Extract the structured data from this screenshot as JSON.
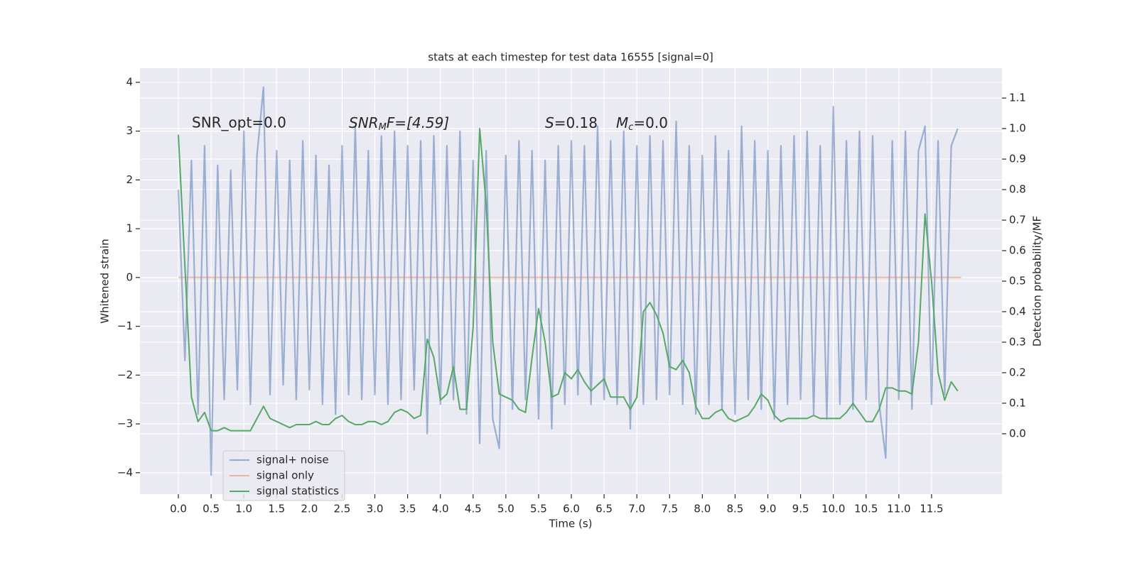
{
  "chart_data": {
    "type": "line",
    "title": "stats at each timestep for test data 16555 [signal=0]",
    "xlabel": "Time (s)",
    "ylabel": "Whitened strain",
    "y2label": "Detection probability/MF",
    "xlim": [
      -0.586,
      12.575
    ],
    "ylim": [
      -4.44,
      4.29
    ],
    "y2lim": [
      -0.198,
      1.198
    ],
    "grid": true,
    "legend": "lower left",
    "xticks": [
      {
        "value": 0,
        "label": "0.0"
      },
      0.5,
      {
        "value": 1,
        "label": "1.0"
      },
      1.5,
      {
        "value": 2,
        "label": "2.0"
      },
      2.5,
      {
        "value": 3,
        "label": "3.0"
      },
      3.5,
      {
        "value": 4,
        "label": "4.0"
      },
      4.5,
      {
        "value": 5,
        "label": "5.0"
      },
      5.5,
      {
        "value": 6,
        "label": "6.0"
      },
      6.5,
      {
        "value": 7,
        "label": "7.0"
      },
      7.5,
      {
        "value": 8,
        "label": "8.0"
      },
      8.5,
      {
        "value": 9,
        "label": "9.0"
      },
      9.5,
      {
        "value": 10,
        "label": "10.0"
      },
      10.5,
      {
        "value": 11,
        "label": "11.0"
      },
      11.5
    ],
    "yticks": [
      {
        "value": -4,
        "label": "−4"
      },
      {
        "value": -3,
        "label": "−3"
      },
      {
        "value": -2,
        "label": "−2"
      },
      {
        "value": -1,
        "label": "−1"
      },
      0,
      1,
      2,
      3,
      4
    ],
    "y2ticks": [
      {
        "value": 0,
        "label": "0.0"
      },
      0.1,
      0.2,
      0.3,
      0.4,
      0.5,
      0.6,
      0.7,
      0.8,
      0.9,
      {
        "value": 1,
        "label": "1.0"
      },
      1.1
    ],
    "annotations": [
      [
        "SNR_opt=0.0"
      ],
      [
        "SNR",
        "M",
        "F=[4.59]"
      ],
      [
        "S",
        "=0.18",
        "M",
        "c",
        "=0.0"
      ]
    ],
    "x": [
      0,
      0.1,
      0.2,
      0.3,
      0.4,
      0.5,
      0.6,
      0.7,
      0.8,
      0.9,
      1,
      1.1,
      1.2,
      1.3,
      1.4,
      1.5,
      1.6,
      1.7,
      1.8,
      1.9,
      2,
      2.1,
      2.2,
      2.3,
      2.4,
      2.5,
      2.6,
      2.7,
      2.8,
      2.9,
      3,
      3.1,
      3.2,
      3.3,
      3.4,
      3.5,
      3.6,
      3.7,
      3.8,
      3.9,
      4,
      4.1,
      4.2,
      4.3,
      4.4,
      4.5,
      4.6,
      4.7,
      4.8,
      4.9,
      5,
      5.1,
      5.2,
      5.3,
      5.4,
      5.5,
      5.6,
      5.7,
      5.8,
      5.9,
      6,
      6.1,
      6.2,
      6.3,
      6.4,
      6.5,
      6.6,
      6.7,
      6.8,
      6.9,
      7,
      7.1,
      7.2,
      7.3,
      7.4,
      7.5,
      7.6,
      7.7,
      7.8,
      7.9,
      8,
      8.1,
      8.2,
      8.3,
      8.4,
      8.5,
      8.6,
      8.7,
      8.8,
      8.9,
      9,
      9.1,
      9.2,
      9.3,
      9.4,
      9.5,
      9.6,
      9.7,
      9.8,
      9.9,
      10,
      10.1,
      10.2,
      10.3,
      10.4,
      10.5,
      10.6,
      10.7,
      10.8,
      10.9,
      11,
      11.1,
      11.2,
      11.3,
      11.4,
      11.5,
      11.6,
      11.7,
      11.8,
      11.9
    ],
    "series": [
      {
        "name": "signal+ noise",
        "color": "#4c72b0",
        "axis": "y",
        "values": [
          1.8,
          -1.7,
          2.4,
          -2.8,
          2.7,
          -4.05,
          2.3,
          -2.5,
          2.2,
          -2.3,
          3.0,
          -2.6,
          2.5,
          3.9,
          -2.4,
          2.6,
          -2.2,
          2.4,
          -2.5,
          2.8,
          -2.3,
          2.5,
          -2.6,
          2.3,
          -2.8,
          2.7,
          -2.4,
          3.1,
          -2.5,
          2.6,
          -2.4,
          2.9,
          -2.6,
          3.0,
          -2.5,
          2.7,
          -2.3,
          2.8,
          -3.2,
          2.9,
          -2.6,
          2.7,
          -2.5,
          3.0,
          -2.8,
          2.4,
          -3.4,
          2.6,
          -2.9,
          -3.5,
          2.5,
          -2.7,
          2.8,
          -2.5,
          2.6,
          -2.9,
          2.4,
          -3.1,
          2.7,
          -2.6,
          2.8,
          -2.4,
          2.7,
          -2.6,
          3.1,
          -2.5,
          2.8,
          -2.6,
          3.0,
          -3.1,
          2.7,
          -2.6,
          2.9,
          -2.5,
          2.8,
          -2.4,
          3.2,
          -2.6,
          2.7,
          -2.8,
          2.5,
          -2.6,
          2.9,
          -2.7,
          2.6,
          -2.8,
          3.1,
          -2.5,
          2.8,
          -2.7,
          2.6,
          -2.9,
          2.7,
          -2.6,
          2.9,
          -2.5,
          3.0,
          -2.8,
          2.7,
          -2.9,
          3.5,
          -2.6,
          2.8,
          -2.7,
          3.0,
          -2.5,
          2.9,
          -2.6,
          -3.7,
          2.8,
          -2.5,
          3.0,
          -2.7,
          2.6,
          3.1,
          -2.6,
          2.8,
          -2.4,
          2.7,
          3.05
        ]
      },
      {
        "name": "signal only",
        "color": "#dd8452",
        "axis": "y",
        "x": [
          0,
          11.95
        ],
        "values": [
          0,
          0
        ]
      },
      {
        "name": "signal statistics",
        "color": "#55a868",
        "axis": "y2",
        "values": [
          0.98,
          0.55,
          0.12,
          0.04,
          0.07,
          0.01,
          0.01,
          0.02,
          0.01,
          0.01,
          0.01,
          0.01,
          0.05,
          0.09,
          0.05,
          0.04,
          0.03,
          0.02,
          0.03,
          0.03,
          0.03,
          0.04,
          0.03,
          0.03,
          0.05,
          0.06,
          0.04,
          0.03,
          0.03,
          0.04,
          0.04,
          0.03,
          0.04,
          0.07,
          0.08,
          0.07,
          0.05,
          0.06,
          0.31,
          0.25,
          0.11,
          0.13,
          0.22,
          0.08,
          0.08,
          0.35,
          1.0,
          0.75,
          0.3,
          0.13,
          0.12,
          0.11,
          0.08,
          0.07,
          0.25,
          0.41,
          0.3,
          0.12,
          0.13,
          0.2,
          0.18,
          0.21,
          0.17,
          0.14,
          0.16,
          0.18,
          0.12,
          0.12,
          0.12,
          0.08,
          0.12,
          0.4,
          0.43,
          0.39,
          0.33,
          0.22,
          0.21,
          0.24,
          0.2,
          0.09,
          0.05,
          0.05,
          0.07,
          0.08,
          0.05,
          0.04,
          0.05,
          0.06,
          0.09,
          0.13,
          0.11,
          0.06,
          0.04,
          0.05,
          0.05,
          0.05,
          0.05,
          0.06,
          0.05,
          0.05,
          0.05,
          0.05,
          0.07,
          0.1,
          0.07,
          0.04,
          0.04,
          0.08,
          0.15,
          0.15,
          0.14,
          0.14,
          0.13,
          0.3,
          0.72,
          0.5,
          0.2,
          0.11,
          0.17,
          0.14
        ]
      }
    ]
  }
}
